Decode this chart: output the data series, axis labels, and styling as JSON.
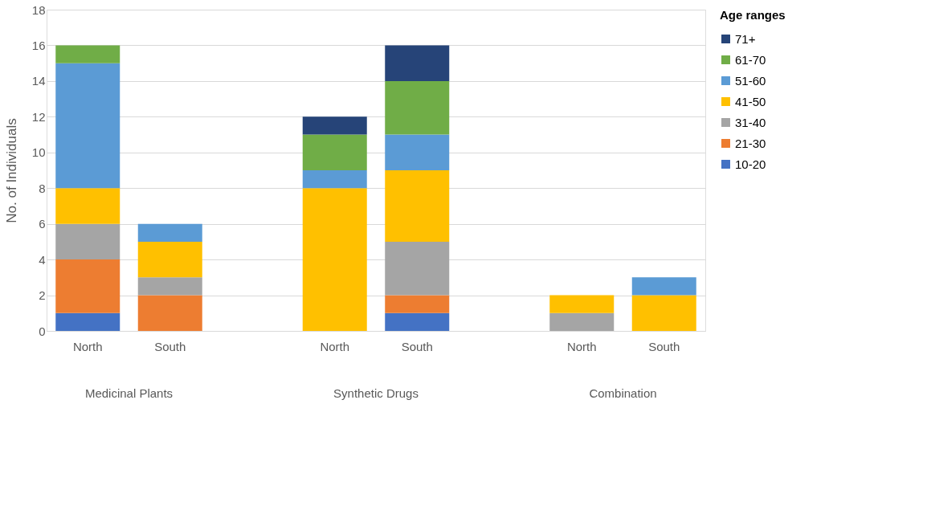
{
  "chart_data": {
    "type": "bar",
    "stacked": true,
    "ylabel": "No. of Individuals",
    "legend_title": "Age ranges",
    "legend": "right",
    "grid": "y",
    "categories": [
      "North",
      "South",
      null,
      "North",
      "South",
      null,
      "North",
      "South"
    ],
    "annotations": [
      "Medicinal Plants",
      "Synthetic Drugs",
      "Combination"
    ],
    "ylim": [
      0,
      18
    ],
    "yticks": [
      0,
      2,
      4,
      6,
      8,
      10,
      12,
      14,
      16,
      18
    ],
    "series": [
      {
        "name": "10-20",
        "color": "#4472c4",
        "values": [
          1,
          0,
          null,
          0,
          1,
          null,
          0,
          0
        ]
      },
      {
        "name": "21-30",
        "color": "#ed7d31",
        "values": [
          3,
          2,
          null,
          0,
          1,
          null,
          0,
          0
        ]
      },
      {
        "name": "31-40",
        "color": "#a5a5a5",
        "values": [
          2,
          1,
          null,
          0,
          3,
          null,
          1,
          0
        ]
      },
      {
        "name": "41-50",
        "color": "#ffc000",
        "values": [
          2,
          2,
          null,
          8,
          4,
          null,
          1,
          2
        ]
      },
      {
        "name": "51-60",
        "color": "#5b9bd5",
        "values": [
          7,
          1,
          null,
          1,
          2,
          null,
          0,
          1
        ]
      },
      {
        "name": "61-70",
        "color": "#70ad47",
        "values": [
          1,
          0,
          null,
          2,
          3,
          null,
          0,
          0
        ]
      },
      {
        "name": "71+",
        "color": "#264478",
        "values": [
          0,
          0,
          null,
          1,
          2,
          null,
          0,
          0
        ]
      }
    ]
  }
}
